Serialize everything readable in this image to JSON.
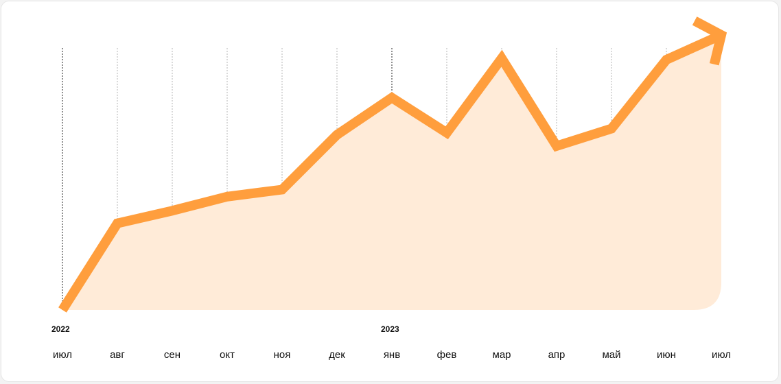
{
  "chart_data": {
    "type": "area",
    "title": "",
    "xlabel": "",
    "ylabel": "",
    "year_labels": [
      {
        "text": "2022",
        "at_index": 0
      },
      {
        "text": "2023",
        "at_index": 6
      }
    ],
    "categories": [
      "июл",
      "авг",
      "сен",
      "окт",
      "ноя",
      "дек",
      "янв",
      "фев",
      "мар",
      "апр",
      "май",
      "июн",
      "июл"
    ],
    "values": [
      0,
      30.8,
      35.3,
      40.3,
      42.8,
      62.3,
      75.5,
      63.0,
      89.5,
      58.3,
      64.5,
      89.0,
      97.8
    ],
    "ylim": [
      0,
      100
    ],
    "grid": "vertical dotted lines at each month; dark dotted lines at year starts",
    "axes_visible": false,
    "trend_arrow": true,
    "colors": {
      "line": "#FF9E3D",
      "fill": "#FFEBD8",
      "grid": "#B5B5B5",
      "grid_year": "#222222",
      "text": "#111111"
    }
  }
}
